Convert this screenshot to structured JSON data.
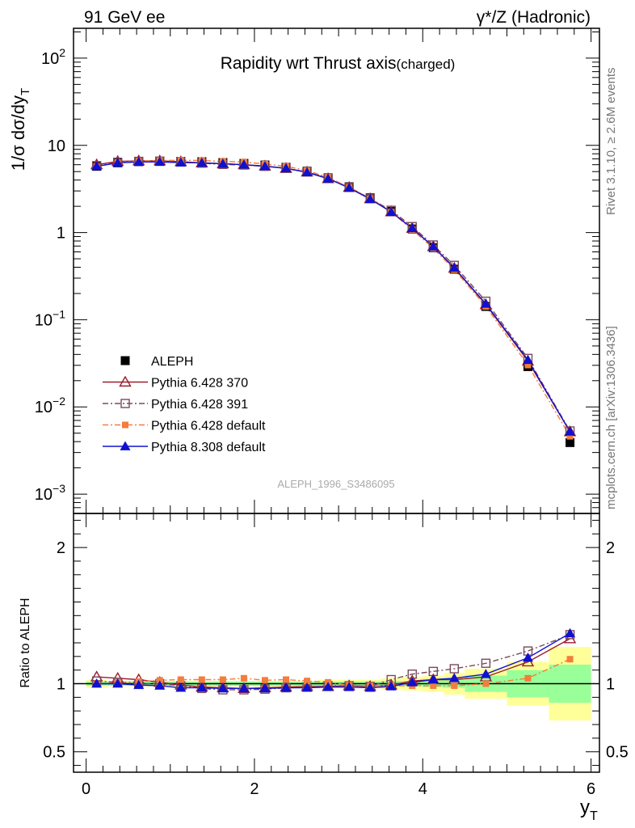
{
  "header": {
    "left": "91 GeV ee",
    "right": "γ*/Z (Hadronic)"
  },
  "side_labels": {
    "top": "Rivet 3.1.10, ≥ 2.6M events",
    "bottom": "mcplots.cern.ch [arXiv:1306.3436]"
  },
  "chart_data": [
    {
      "type": "line",
      "title": "Rapidity wrt Thrust axis",
      "title_suffix": "(charged)",
      "ylabel": "1/σ dσ/dy",
      "ylabel_sub": "T",
      "yscale": "log",
      "ylim": [
        0.0006,
        220
      ],
      "xlim": [
        -0.15,
        6.1
      ],
      "y_tick_labels": [
        {
          "value": 100,
          "base": "10",
          "exp": "2"
        },
        {
          "value": 10,
          "base": "10",
          "exp": ""
        },
        {
          "value": 1,
          "base": "1",
          "exp": ""
        },
        {
          "value": 0.1,
          "base": "10",
          "exp": "−1"
        },
        {
          "value": 0.01,
          "base": "10",
          "exp": "−2"
        },
        {
          "value": 0.001,
          "base": "10",
          "exp": "−3"
        }
      ],
      "legend_placement": "lower-left",
      "watermark": "ALEPH_1996_S3486095",
      "x": [
        0.125,
        0.375,
        0.625,
        0.875,
        1.125,
        1.375,
        1.625,
        1.875,
        2.125,
        2.375,
        2.625,
        2.875,
        3.125,
        3.375,
        3.625,
        3.875,
        4.125,
        4.375,
        4.75,
        5.25,
        5.75
      ],
      "series": [
        {
          "name": "ALEPH",
          "color": "#000000",
          "marker": "square-filled",
          "values": [
            5.75,
            6.3,
            6.5,
            6.55,
            6.55,
            6.5,
            6.35,
            6.2,
            5.95,
            5.6,
            5.05,
            4.25,
            3.35,
            2.5,
            1.75,
            1.1,
            0.67,
            0.38,
            0.142,
            0.029,
            0.0039
          ]
        },
        {
          "name": "Pythia 6.428 370",
          "color": "#9b1c2c",
          "marker": "triangle-open",
          "dash": "",
          "values": [
            6.0,
            6.55,
            6.65,
            6.65,
            6.5,
            6.3,
            6.15,
            6.0,
            5.8,
            5.45,
            4.95,
            4.15,
            3.3,
            2.45,
            1.73,
            1.12,
            0.69,
            0.39,
            0.149,
            0.0335,
            0.0052
          ]
        },
        {
          "name": "Pythia 6.428 391",
          "color": "#7a4a5a",
          "marker": "square-open",
          "dash": "7,3,2,3",
          "values": [
            5.85,
            6.4,
            6.55,
            6.6,
            6.45,
            6.25,
            6.05,
            5.95,
            5.75,
            5.45,
            4.95,
            4.2,
            3.3,
            2.45,
            1.8,
            1.17,
            0.72,
            0.42,
            0.163,
            0.036,
            0.0053
          ]
        },
        {
          "name": "Pythia 6.428 default",
          "color": "#f47c3c",
          "marker": "square-filled-small",
          "dash": "7,3,2,3",
          "values": [
            5.7,
            6.35,
            6.6,
            6.7,
            6.75,
            6.7,
            6.55,
            6.45,
            6.1,
            5.75,
            5.15,
            4.3,
            3.3,
            2.45,
            1.72,
            1.08,
            0.66,
            0.375,
            0.142,
            0.0302,
            0.0046
          ]
        },
        {
          "name": "Pythia 8.308 default",
          "color": "#1010d0",
          "marker": "triangle-filled",
          "dash": "",
          "values": [
            5.75,
            6.3,
            6.45,
            6.45,
            6.35,
            6.3,
            6.15,
            6.0,
            5.75,
            5.45,
            4.9,
            4.15,
            3.25,
            2.42,
            1.72,
            1.12,
            0.69,
            0.395,
            0.152,
            0.0345,
            0.0052
          ]
        }
      ]
    },
    {
      "type": "line",
      "ylabel": "Ratio to ALEPH",
      "xlabel": "y",
      "xlabel_sub": "T",
      "ylim": [
        0.35,
        2.25
      ],
      "xlim": [
        -0.15,
        6.1
      ],
      "x_ticks": [
        0,
        2,
        4,
        6
      ],
      "y_ticks": [
        0.5,
        1,
        2
      ],
      "y_tick_labels": [
        "0.5",
        "1",
        "2"
      ],
      "x_tick_labels": [
        "0",
        "2",
        "4",
        "6"
      ],
      "bands": {
        "edges": [
          0,
          0.25,
          0.5,
          0.75,
          1.0,
          1.25,
          1.5,
          1.75,
          2.0,
          2.25,
          2.5,
          2.75,
          3.0,
          3.25,
          3.5,
          3.75,
          4.0,
          4.25,
          4.5,
          5.0,
          5.5,
          6.0
        ],
        "inner_color": "#99ff99",
        "outer_color": "#ffff99",
        "inner": [
          0.015,
          0.015,
          0.015,
          0.015,
          0.015,
          0.015,
          0.015,
          0.015,
          0.015,
          0.015,
          0.015,
          0.015,
          0.015,
          0.015,
          0.02,
          0.02,
          0.025,
          0.03,
          0.06,
          0.1,
          0.14
        ],
        "outer": [
          0.03,
          0.02,
          0.02,
          0.02,
          0.02,
          0.02,
          0.02,
          0.02,
          0.02,
          0.02,
          0.02,
          0.03,
          0.03,
          0.03,
          0.04,
          0.05,
          0.06,
          0.08,
          0.11,
          0.16,
          0.27
        ]
      },
      "x": [
        0.125,
        0.375,
        0.625,
        0.875,
        1.125,
        1.375,
        1.625,
        1.875,
        2.125,
        2.375,
        2.625,
        2.875,
        3.125,
        3.375,
        3.625,
        3.875,
        4.125,
        4.375,
        4.75,
        5.25,
        5.75
      ],
      "series": [
        {
          "name": "Pythia 6.428 370",
          "color": "#9b1c2c",
          "marker": "triangle-open",
          "dash": "",
          "values": [
            1.05,
            1.04,
            1.03,
            1.01,
            0.99,
            0.975,
            0.97,
            0.965,
            0.97,
            0.975,
            0.98,
            0.98,
            0.985,
            0.98,
            0.99,
            1.02,
            1.03,
            1.03,
            1.05,
            1.16,
            1.33
          ]
        },
        {
          "name": "Pythia 6.428 391",
          "color": "#7a4a5a",
          "marker": "square-open",
          "dash": "7,3,2,3",
          "values": [
            1.02,
            1.01,
            1.0,
            1.0,
            0.985,
            0.965,
            0.955,
            0.955,
            0.96,
            0.97,
            0.975,
            0.985,
            0.985,
            0.98,
            1.03,
            1.07,
            1.09,
            1.11,
            1.15,
            1.24,
            1.36
          ]
        },
        {
          "name": "Pythia 6.428 default",
          "color": "#f47c3c",
          "marker": "square-filled-small",
          "dash": "7,3,2,3",
          "values": [
            0.995,
            1.01,
            1.015,
            1.025,
            1.03,
            1.03,
            1.03,
            1.04,
            1.025,
            1.03,
            1.02,
            1.01,
            0.99,
            0.985,
            0.985,
            0.985,
            0.985,
            0.985,
            1.0,
            1.04,
            1.18
          ]
        },
        {
          "name": "Pythia 8.308 default",
          "color": "#1010d0",
          "marker": "triangle-filled",
          "dash": "",
          "values": [
            1.0,
            1.0,
            0.99,
            0.985,
            0.97,
            0.97,
            0.965,
            0.965,
            0.965,
            0.97,
            0.97,
            0.975,
            0.975,
            0.97,
            0.98,
            1.01,
            1.03,
            1.04,
            1.07,
            1.19,
            1.37
          ]
        }
      ]
    }
  ]
}
